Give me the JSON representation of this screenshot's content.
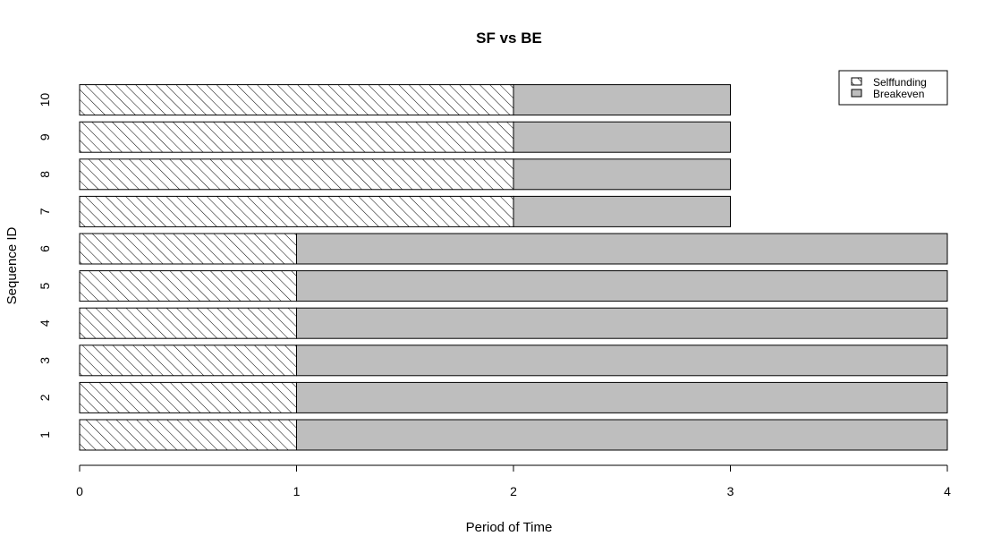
{
  "chart_data": {
    "type": "bar",
    "orientation": "horizontal",
    "stacked": true,
    "title": "SF vs BE",
    "xlabel": "Period of Time",
    "ylabel": "Sequence ID",
    "categories": [
      "1",
      "2",
      "3",
      "4",
      "5",
      "6",
      "7",
      "8",
      "9",
      "10"
    ],
    "xlim": [
      0,
      4
    ],
    "xticks": [
      "0",
      "1",
      "2",
      "3",
      "4"
    ],
    "grid": false,
    "legend_position": "top-right",
    "series": [
      {
        "name": "Selffunding",
        "fill": "hatched",
        "color": "#ffffff",
        "values": [
          1,
          1,
          1,
          1,
          1,
          1,
          2,
          2,
          2,
          2
        ]
      },
      {
        "name": "Breakeven",
        "fill": "solid",
        "color": "#bebebe",
        "values": [
          3,
          3,
          3,
          3,
          3,
          3,
          1,
          1,
          1,
          1
        ]
      }
    ]
  }
}
